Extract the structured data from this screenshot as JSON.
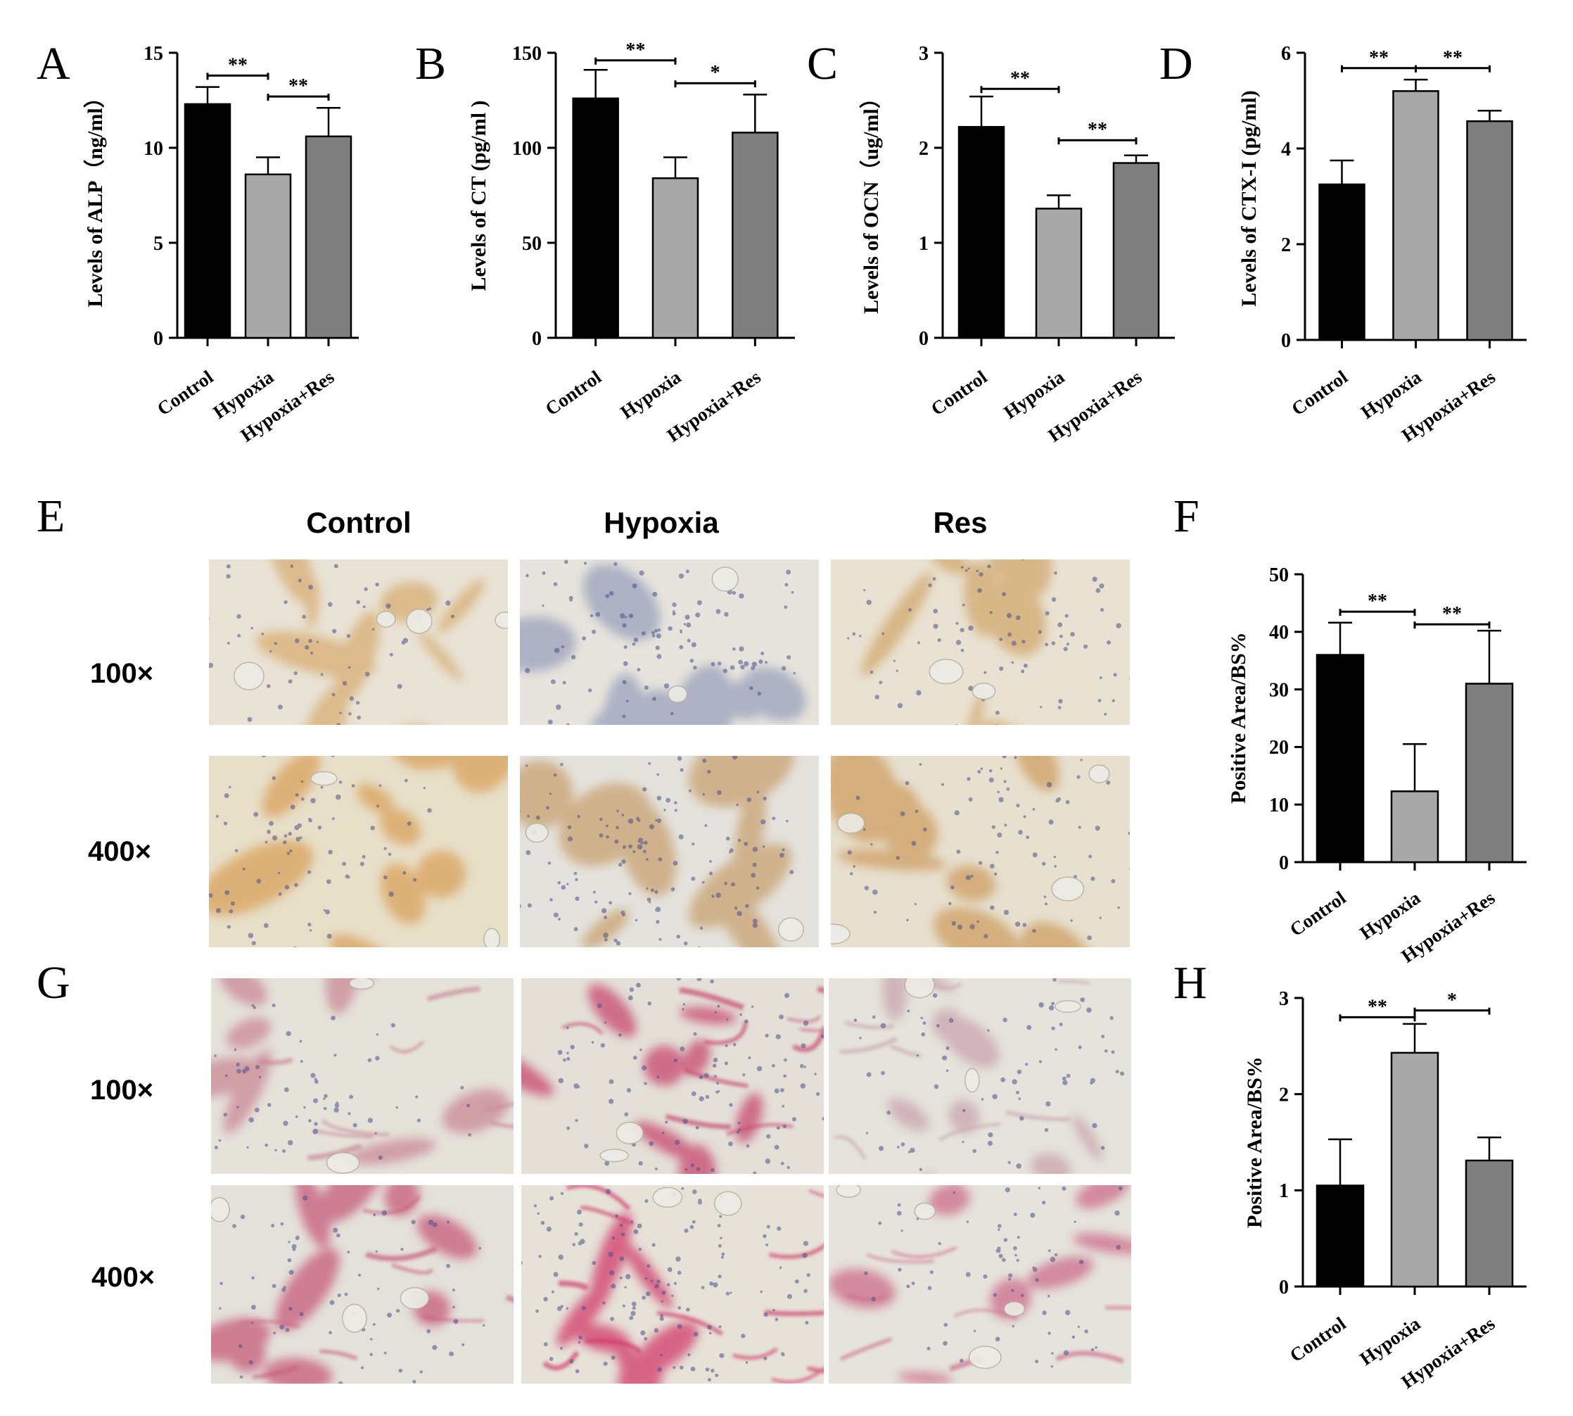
{
  "panel_letters": {
    "A": "A",
    "B": "B",
    "C": "C",
    "D": "D",
    "E": "E",
    "F": "F",
    "G": "G",
    "H": "H"
  },
  "micrograph_panels": [
    {
      "id": "E",
      "column_headers": [
        "Control",
        "Hypoxia",
        "Res"
      ],
      "row_labels": [
        "100×",
        "400×"
      ],
      "stain": "brown",
      "tiles": [
        {
          "row": 0,
          "col": 0,
          "bg": "#e9e3d6",
          "tissue": "#d7ad72",
          "cell_density": 0.45
        },
        {
          "row": 0,
          "col": 1,
          "bg": "#e6e4dc",
          "tissue": "#9aa0bb",
          "cell_density": 0.75
        },
        {
          "row": 0,
          "col": 2,
          "bg": "#e9e2d2",
          "tissue": "#d2a86e",
          "cell_density": 0.6
        },
        {
          "row": 1,
          "col": 0,
          "bg": "#e8dfc9",
          "tissue": "#d9a25c",
          "cell_density": 0.65
        },
        {
          "row": 1,
          "col": 1,
          "bg": "#e4e2dc",
          "tissue": "#c9a272",
          "cell_density": 0.95
        },
        {
          "row": 1,
          "col": 2,
          "bg": "#e7e0cf",
          "tissue": "#cf9e62",
          "cell_density": 0.6
        }
      ]
    },
    {
      "id": "G",
      "column_headers": [],
      "row_labels": [
        "100×",
        "400×"
      ],
      "stain": "red",
      "tiles": [
        {
          "row": 0,
          "col": 0,
          "bg": "#e5e2da",
          "tissue": "#c98895",
          "cell_density": 0.55
        },
        {
          "row": 0,
          "col": 1,
          "bg": "#e4e0d8",
          "tissue": "#c8466e",
          "cell_density": 0.75
        },
        {
          "row": 0,
          "col": 2,
          "bg": "#e5e3dc",
          "tissue": "#c9a4ae",
          "cell_density": 0.5
        },
        {
          "row": 1,
          "col": 0,
          "bg": "#e4e1da",
          "tissue": "#c75a7a",
          "cell_density": 0.5
        },
        {
          "row": 1,
          "col": 1,
          "bg": "#e6e2d8",
          "tissue": "#d23a6a",
          "cell_density": 0.95
        },
        {
          "row": 1,
          "col": 2,
          "bg": "#e6e3dc",
          "tissue": "#cc6c8a",
          "cell_density": 0.55
        }
      ]
    }
  ],
  "bar_colors": [
    "#000000",
    "#a8a8a8",
    "#7f7f7f"
  ],
  "chart_data": [
    {
      "panel": "A",
      "type": "bar",
      "categories": [
        "Control",
        "Hypoxia",
        "Hypoxia+Res"
      ],
      "values": [
        12.3,
        8.6,
        10.6
      ],
      "errors": [
        0.9,
        0.9,
        1.5
      ],
      "ylabel": "Levels of ALP（ng/ml）",
      "ylim": [
        0,
        15
      ],
      "yticks": [
        0,
        5,
        10,
        15
      ],
      "significance": [
        {
          "from": 0,
          "to": 1,
          "label": "**",
          "y": 13.8
        },
        {
          "from": 1,
          "to": 2,
          "label": "**",
          "y": 12.7
        }
      ]
    },
    {
      "panel": "B",
      "type": "bar",
      "categories": [
        "Control",
        "Hypoxia",
        "Hypoxia+Res"
      ],
      "values": [
        126,
        84,
        108
      ],
      "errors": [
        15,
        11,
        20
      ],
      "ylabel": "Levels of CT (pg/ml )",
      "ylim": [
        0,
        150
      ],
      "yticks": [
        0,
        50,
        100,
        150
      ],
      "significance": [
        {
          "from": 0,
          "to": 1,
          "label": "**",
          "y": 146
        },
        {
          "from": 1,
          "to": 2,
          "label": "*",
          "y": 134
        }
      ]
    },
    {
      "panel": "C",
      "type": "bar",
      "categories": [
        "Control",
        "Hypoxia",
        "Hypoxia+Res"
      ],
      "values": [
        2.22,
        1.36,
        1.84
      ],
      "errors": [
        0.32,
        0.14,
        0.08
      ],
      "ylabel": "Levels of OCN（ug/ml）",
      "ylim": [
        0,
        3
      ],
      "yticks": [
        0,
        1,
        2,
        3
      ],
      "significance": [
        {
          "from": 0,
          "to": 1,
          "label": "**",
          "y": 2.62
        },
        {
          "from": 1,
          "to": 2,
          "label": "**",
          "y": 2.08
        }
      ]
    },
    {
      "panel": "D",
      "type": "bar",
      "categories": [
        "Control",
        "Hypoxia",
        "Hypoxia+Res"
      ],
      "values": [
        3.25,
        5.2,
        4.57
      ],
      "errors": [
        0.5,
        0.24,
        0.22
      ],
      "ylabel": "Levels of CTX-I (pg/ml)",
      "ylim": [
        0,
        6
      ],
      "yticks": [
        0,
        2,
        4,
        6
      ],
      "significance": [
        {
          "from": 0,
          "to": 1,
          "label": "**",
          "y": 5.68
        },
        {
          "from": 1,
          "to": 2,
          "label": "**",
          "y": 5.68
        }
      ]
    },
    {
      "panel": "F",
      "type": "bar",
      "categories": [
        "Control",
        "Hypoxia",
        "Hypoxia+Res"
      ],
      "values": [
        36,
        12.3,
        31
      ],
      "errors": [
        5.6,
        8.2,
        9.2
      ],
      "ylabel": "Positive Area/BS%",
      "ylim": [
        0,
        50
      ],
      "yticks": [
        0,
        10,
        20,
        30,
        40,
        50
      ],
      "significance": [
        {
          "from": 0,
          "to": 1,
          "label": "**",
          "y": 43.5
        },
        {
          "from": 1,
          "to": 2,
          "label": "**",
          "y": 41.3
        }
      ]
    },
    {
      "panel": "H",
      "type": "bar",
      "categories": [
        "Control",
        "Hypoxia",
        "Hypoxia+Res"
      ],
      "values": [
        1.05,
        2.43,
        1.31
      ],
      "errors": [
        0.48,
        0.3,
        0.24
      ],
      "ylabel": "Positive Area/BS%",
      "ylim": [
        0,
        3
      ],
      "yticks": [
        0,
        1,
        2,
        3
      ],
      "significance": [
        {
          "from": 0,
          "to": 1,
          "label": "**",
          "y": 2.8
        },
        {
          "from": 1,
          "to": 2,
          "label": "*",
          "y": 2.87
        }
      ]
    }
  ]
}
